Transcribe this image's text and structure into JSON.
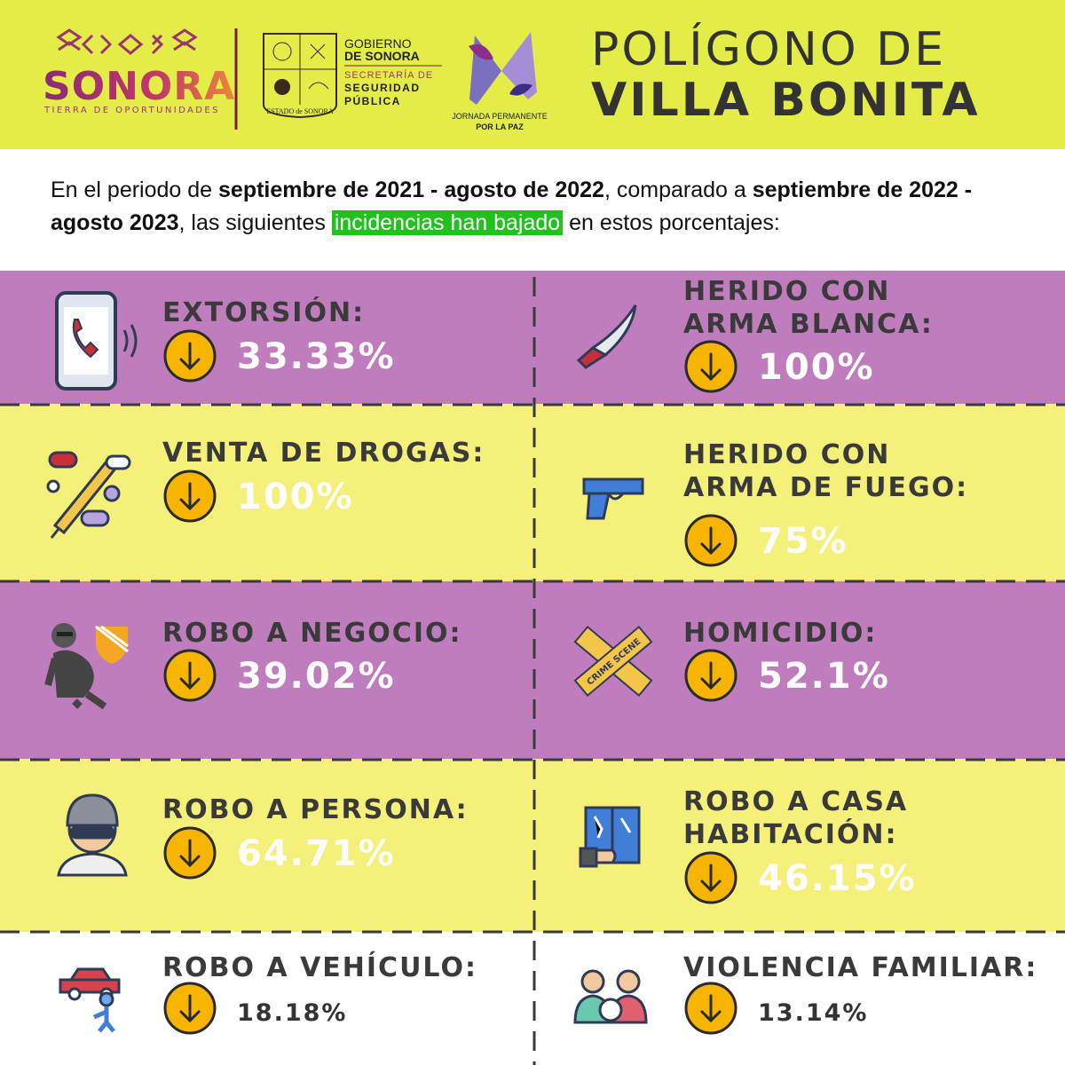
{
  "header": {
    "sonora_logo": {
      "name": "SONORA",
      "tagline": "TIERRA DE OPORTUNIDADES"
    },
    "seal_caption": "ESTADO de SONORA",
    "government": {
      "line1": "GOBIERNO",
      "line2": "DE SONORA",
      "line3": "SECRETARÍA DE",
      "line4": "SEGURIDAD",
      "line5": "PÚBLICA"
    },
    "peace_logo": {
      "line1": "JORNADA PERMANENTE",
      "line2": "POR LA PAZ"
    },
    "title": {
      "line1": "POLÍGONO DE",
      "line2": "VILLA BONITA"
    }
  },
  "intro": {
    "segments": [
      "En el periodo de ",
      "septiembre de 2021 - agosto de 2022",
      ", comparado a ",
      "septiembre de 2022 - agosto 2023",
      ", las siguientes ",
      "incidencias han bajado",
      " en estos porcentajes:"
    ]
  },
  "items": [
    {
      "label": [
        "EXTORSIÓN:"
      ],
      "value": "33.33%"
    },
    {
      "label": [
        "HERIDO CON",
        "ARMA BLANCA:"
      ],
      "value": "100%"
    },
    {
      "label": [
        "VENTA DE DROGAS:"
      ],
      "value": "100%"
    },
    {
      "label": [
        "HERIDO CON",
        "ARMA DE FUEGO:"
      ],
      "value": "75%"
    },
    {
      "label": [
        "ROBO A NEGOCIO:"
      ],
      "value": "39.02%"
    },
    {
      "label": [
        "HOMICIDIO:"
      ],
      "value": "52.1%",
      "icon_text": "CRIME SCENE"
    },
    {
      "label": [
        "ROBO A PERSONA:"
      ],
      "value": "64.71%"
    },
    {
      "label": [
        "ROBO A CASA",
        "HABITACIÓN:"
      ],
      "value": "46.15%"
    },
    {
      "label": [
        "ROBO A VEHÍCULO:"
      ],
      "value": "18.18%"
    },
    {
      "label": [
        "VIOLENCIA FAMILIAR:"
      ],
      "value": "13.14%"
    }
  ]
}
